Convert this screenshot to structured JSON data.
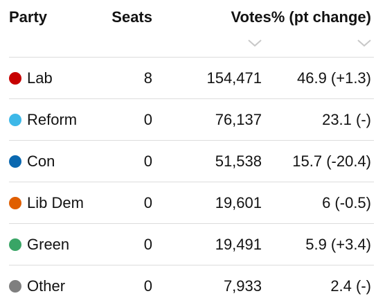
{
  "header": {
    "party": "Party",
    "seats": "Seats",
    "votes": "Votes% (pt change)"
  },
  "rows": [
    {
      "color": "#c70000",
      "party": "Lab",
      "seats": 8,
      "votes": "154,471",
      "share": "46.9 (+1.3)"
    },
    {
      "color": "#3db8e8",
      "party": "Reform",
      "seats": 0,
      "votes": "76,137",
      "share": "23.1 (-)"
    },
    {
      "color": "#0a68b0",
      "party": "Con",
      "seats": 0,
      "votes": "51,538",
      "share": "15.7 (-20.4)"
    },
    {
      "color": "#e05e00",
      "party": "Lib Dem",
      "seats": 0,
      "votes": "19,601",
      "share": "6 (-0.5)"
    },
    {
      "color": "#39a566",
      "party": "Green",
      "seats": 0,
      "votes": "19,491",
      "share": "5.9 (+3.4)"
    },
    {
      "color": "#7f7f7f",
      "party": "Other",
      "seats": 0,
      "votes": "7,933",
      "share": "2.4 (-)"
    }
  ]
}
